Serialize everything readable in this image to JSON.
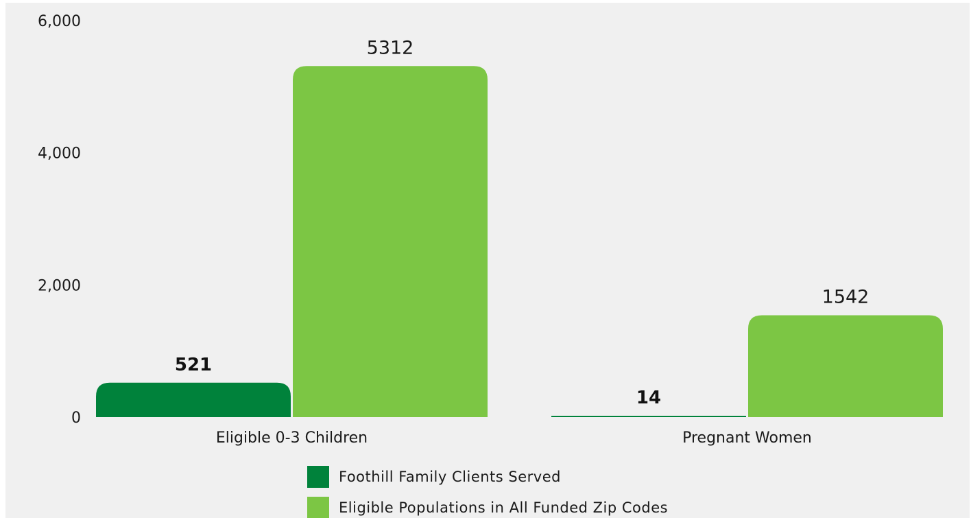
{
  "colors": {
    "served": "#00823b",
    "eligible": "#7cc644",
    "background": "#f0f0f0"
  },
  "chart_data": {
    "type": "bar",
    "title": "",
    "xlabel": "",
    "ylabel": "",
    "ylim": [
      0,
      6000
    ],
    "yticks": [
      "0",
      "2,000",
      "4,000",
      "6,000"
    ],
    "ytick_values": [
      0,
      2000,
      4000,
      6000
    ],
    "grid": false,
    "legend_position": "bottom",
    "categories": [
      "Eligible 0-3 Children",
      "Pregnant Women"
    ],
    "series": [
      {
        "name": "Foothill Family Clients Served",
        "values": [
          521,
          14
        ],
        "labels": [
          "521",
          "14"
        ],
        "label_style": "bold",
        "color": "#00823b"
      },
      {
        "name": "Eligible Populations in All Funded Zip Codes",
        "values": [
          5312,
          1542
        ],
        "labels": [
          "5312",
          "1542"
        ],
        "label_style": "normal",
        "color": "#7cc644"
      }
    ]
  }
}
